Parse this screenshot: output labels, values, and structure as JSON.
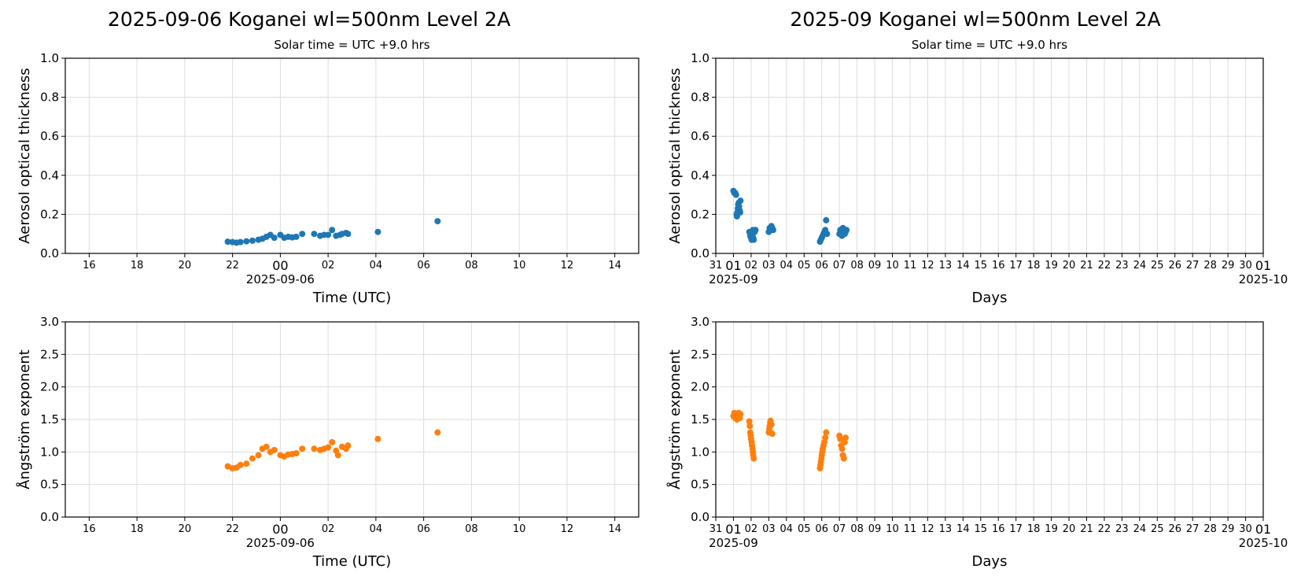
{
  "titles": {
    "left": "2025-09-06  Koganei  wl=500nm  Level 2A",
    "right": "2025-09  Koganei  wl=500nm  Level 2A"
  },
  "colors": {
    "aod": "#1f77b4",
    "angstrom": "#ff7f0e",
    "grid": "#dddddd"
  },
  "chart_data": [
    {
      "type": "scatter",
      "subtitle": "Solar time = UTC +9.0 hrs",
      "xlabel": "Time (UTC)",
      "ylabel": "Aerosol optical thickness",
      "xlim": [
        "2025-09-05 15:00",
        "2025-09-06 15:00"
      ],
      "ylim": [
        0,
        1.0
      ],
      "yticks": [
        "0.0",
        "0.2",
        "0.4",
        "0.6",
        "0.8",
        "1.0"
      ],
      "xticks": [
        "16",
        "18",
        "20",
        "22",
        "00",
        "02",
        "04",
        "06",
        "08",
        "10",
        "12",
        "14"
      ],
      "xdate_label": "2025-09-06",
      "grid": true,
      "color": "aod",
      "series": [
        {
          "x": [
            "2025-09-05 21:48",
            "2025-09-05 22:00",
            "2025-09-05 22:10",
            "2025-09-05 22:20",
            "2025-09-05 22:35",
            "2025-09-05 22:50",
            "2025-09-05 23:05",
            "2025-09-05 23:15",
            "2025-09-05 23:25",
            "2025-09-05 23:35",
            "2025-09-05 23:45",
            "2025-09-06 00:00",
            "2025-09-06 00:10",
            "2025-09-06 00:20",
            "2025-09-06 00:30",
            "2025-09-06 00:40",
            "2025-09-06 00:55",
            "2025-09-06 01:25",
            "2025-09-06 01:40",
            "2025-09-06 01:50",
            "2025-09-06 02:00",
            "2025-09-06 02:10",
            "2025-09-06 02:20",
            "2025-09-06 02:30",
            "2025-09-06 02:35",
            "2025-09-06 02:45",
            "2025-09-06 02:50",
            "2025-09-06 04:05",
            "2025-09-06 06:35"
          ],
          "y": [
            0.06,
            0.058,
            0.055,
            0.058,
            0.062,
            0.065,
            0.07,
            0.075,
            0.085,
            0.095,
            0.08,
            0.095,
            0.08,
            0.085,
            0.082,
            0.085,
            0.1,
            0.1,
            0.09,
            0.095,
            0.095,
            0.12,
            0.09,
            0.095,
            0.1,
            0.105,
            0.1,
            0.11,
            0.165
          ]
        }
      ]
    },
    {
      "type": "scatter",
      "subtitle": "Solar time = UTC +9.0 hrs",
      "xlabel": "Days",
      "ylabel": "Aerosol optical thickness",
      "xlim": [
        "2025-08-31",
        "2025-10-01"
      ],
      "ylim": [
        0,
        1.0
      ],
      "yticks": [
        "0.0",
        "0.2",
        "0.4",
        "0.6",
        "0.8",
        "1.0"
      ],
      "xticks": [
        "31",
        "01",
        "02",
        "03",
        "04",
        "05",
        "06",
        "07",
        "08",
        "09",
        "10",
        "11",
        "12",
        "13",
        "14",
        "15",
        "16",
        "17",
        "18",
        "19",
        "20",
        "21",
        "22",
        "23",
        "24",
        "25",
        "26",
        "27",
        "28",
        "29",
        "30",
        "01"
      ],
      "xdate_labels": [
        {
          "at": "01",
          "text": "2025-09"
        },
        {
          "at": "last",
          "text": "2025-10"
        }
      ],
      "grid": true,
      "color": "aod",
      "series": [
        {
          "x": [
            1.0,
            1.05,
            1.1,
            1.15,
            1.18,
            1.2,
            1.22,
            1.25,
            1.27,
            1.3,
            1.32,
            1.35,
            1.38,
            1.4,
            1.9,
            1.95,
            2.0,
            2.03,
            2.05,
            2.08,
            2.1,
            2.12,
            2.15,
            2.2,
            2.25,
            3.0,
            3.05,
            3.1,
            3.15,
            3.2,
            3.25,
            5.9,
            5.95,
            6.0,
            6.05,
            6.1,
            6.15,
            6.2,
            6.25,
            6.3,
            7.0,
            7.05,
            7.1,
            7.15,
            7.2,
            7.25,
            7.3,
            7.35,
            7.4
          ],
          "y": [
            0.32,
            0.31,
            0.31,
            0.3,
            0.2,
            0.19,
            0.21,
            0.23,
            0.25,
            0.26,
            0.24,
            0.22,
            0.21,
            0.27,
            0.11,
            0.09,
            0.08,
            0.07,
            0.09,
            0.1,
            0.12,
            0.08,
            0.07,
            0.11,
            0.12,
            0.11,
            0.13,
            0.12,
            0.14,
            0.13,
            0.12,
            0.06,
            0.07,
            0.08,
            0.09,
            0.1,
            0.11,
            0.12,
            0.17,
            0.1,
            0.1,
            0.12,
            0.11,
            0.09,
            0.13,
            0.12,
            0.1,
            0.11,
            0.12
          ]
        }
      ]
    },
    {
      "type": "scatter",
      "xlabel": "Time (UTC)",
      "ylabel": "Ångström exponent",
      "xlim": [
        "2025-09-05 15:00",
        "2025-09-06 15:00"
      ],
      "ylim": [
        0,
        3.0
      ],
      "yticks": [
        "0.0",
        "0.5",
        "1.0",
        "1.5",
        "2.0",
        "2.5",
        "3.0"
      ],
      "xticks": [
        "16",
        "18",
        "20",
        "22",
        "00",
        "02",
        "04",
        "06",
        "08",
        "10",
        "12",
        "14"
      ],
      "xdate_label": "2025-09-06",
      "grid": true,
      "color": "angstrom",
      "series": [
        {
          "x": [
            "2025-09-05 21:48",
            "2025-09-05 22:00",
            "2025-09-05 22:10",
            "2025-09-05 22:20",
            "2025-09-05 22:35",
            "2025-09-05 22:50",
            "2025-09-05 23:05",
            "2025-09-05 23:15",
            "2025-09-05 23:25",
            "2025-09-05 23:35",
            "2025-09-05 23:45",
            "2025-09-06 00:00",
            "2025-09-06 00:10",
            "2025-09-06 00:20",
            "2025-09-06 00:30",
            "2025-09-06 00:40",
            "2025-09-06 00:55",
            "2025-09-06 01:25",
            "2025-09-06 01:40",
            "2025-09-06 01:50",
            "2025-09-06 02:00",
            "2025-09-06 02:10",
            "2025-09-06 02:20",
            "2025-09-06 02:25",
            "2025-09-06 02:35",
            "2025-09-06 02:45",
            "2025-09-06 02:50",
            "2025-09-06 04:05",
            "2025-09-06 06:35"
          ],
          "y": [
            0.78,
            0.75,
            0.76,
            0.8,
            0.82,
            0.9,
            0.95,
            1.05,
            1.08,
            1.0,
            1.03,
            0.95,
            0.93,
            0.96,
            0.97,
            0.98,
            1.05,
            1.05,
            1.03,
            1.05,
            1.07,
            1.15,
            1.02,
            0.95,
            1.08,
            1.05,
            1.1,
            1.2,
            1.3
          ]
        }
      ]
    },
    {
      "type": "scatter",
      "xlabel": "Days",
      "ylabel": "Ångström exponent",
      "xlim": [
        "2025-08-31",
        "2025-10-01"
      ],
      "ylim": [
        0,
        3.0
      ],
      "yticks": [
        "0.0",
        "0.5",
        "1.0",
        "1.5",
        "2.0",
        "2.5",
        "3.0"
      ],
      "xticks": [
        "31",
        "01",
        "02",
        "03",
        "04",
        "05",
        "06",
        "07",
        "08",
        "09",
        "10",
        "11",
        "12",
        "13",
        "14",
        "15",
        "16",
        "17",
        "18",
        "19",
        "20",
        "21",
        "22",
        "23",
        "24",
        "25",
        "26",
        "27",
        "28",
        "29",
        "30",
        "01"
      ],
      "xdate_labels": [
        {
          "at": "01",
          "text": "2025-09"
        },
        {
          "at": "last",
          "text": "2025-10"
        }
      ],
      "grid": true,
      "color": "angstrom",
      "series": [
        {
          "x": [
            1.0,
            1.05,
            1.1,
            1.15,
            1.2,
            1.25,
            1.3,
            1.35,
            1.4,
            1.9,
            1.93,
            1.95,
            1.98,
            2.0,
            2.03,
            2.05,
            2.08,
            2.1,
            2.12,
            2.15,
            3.0,
            3.03,
            3.05,
            3.08,
            3.1,
            3.15,
            3.2,
            5.9,
            5.93,
            5.95,
            5.98,
            6.0,
            6.03,
            6.05,
            6.1,
            6.15,
            6.2,
            6.25,
            7.0,
            7.05,
            7.1,
            7.15,
            7.2,
            7.25,
            7.3,
            7.35
          ],
          "y": [
            1.55,
            1.6,
            1.52,
            1.58,
            1.5,
            1.55,
            1.6,
            1.52,
            1.58,
            1.47,
            1.4,
            1.3,
            1.25,
            1.2,
            1.15,
            1.1,
            1.05,
            1.0,
            0.95,
            0.9,
            1.3,
            1.35,
            1.4,
            1.45,
            1.48,
            1.42,
            1.28,
            0.75,
            0.8,
            0.85,
            0.9,
            0.95,
            1.0,
            1.05,
            1.1,
            1.15,
            1.22,
            1.3,
            1.25,
            1.2,
            1.1,
            1.05,
            0.95,
            0.9,
            1.15,
            1.22
          ]
        }
      ]
    }
  ]
}
